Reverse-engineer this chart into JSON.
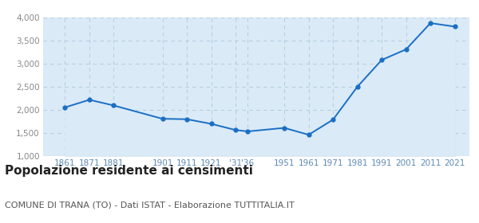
{
  "years": [
    1861,
    1871,
    1881,
    1901,
    1911,
    1921,
    1931,
    1936,
    1951,
    1961,
    1971,
    1981,
    1991,
    2001,
    2011,
    2021
  ],
  "population": [
    2057,
    2222,
    2098,
    1810,
    1800,
    1700,
    1566,
    1536,
    1612,
    1463,
    1791,
    2505,
    3086,
    3316,
    3886,
    3810
  ],
  "line_color": "#1a6fc4",
  "marker_color": "#1a6fc4",
  "fill_color": "#daeaf7",
  "background_color": "#ffffff",
  "grid_color": "#b8cfe0",
  "ylim": [
    1000,
    4000
  ],
  "yticks": [
    1000,
    1500,
    2000,
    2500,
    3000,
    3500,
    4000
  ],
  "title": "Popolazione residente ai censimenti",
  "subtitle": "COMUNE DI TRANA (TO) - Dati ISTAT - Elaborazione TUTTITALIA.IT",
  "title_fontsize": 11,
  "subtitle_fontsize": 8,
  "axis_label_color": "#5b8ab5",
  "axis_label_fontsize": 7.5,
  "ytick_label_color": "#888888"
}
